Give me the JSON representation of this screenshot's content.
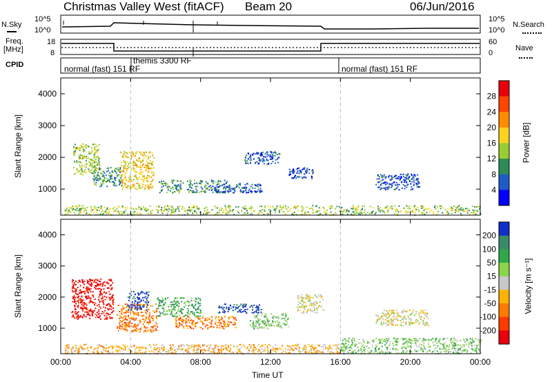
{
  "header": {
    "title": "Christmas Valley West (fitACF)",
    "beam": "Beam 20",
    "date": "06/Jun/2016"
  },
  "labels": {
    "nsky": "N.Sky",
    "nsearch": "N.Search",
    "freq": "Freq.",
    "freq_unit": "[MHz]",
    "nave": "Nave",
    "cpid": "CPID",
    "y_axis": "Slant Range [km]",
    "x_axis": "Time UT",
    "power_label": "Power [dB]",
    "velocity_label": "Velocity [m s⁻¹]"
  },
  "noise_panel": {
    "left_ticks": [
      "10^5",
      "10^0"
    ],
    "right_ticks": [
      "10^5",
      "10^0"
    ]
  },
  "freq_panel": {
    "left_ticks": [
      "18",
      "8"
    ],
    "right_ticks": [
      "60",
      "0"
    ]
  },
  "cpid_segments": [
    {
      "text": "normal (fast) 151 RF",
      "start_hour": 0
    },
    {
      "text": "themis 3300 RF",
      "start_hour": 4
    },
    {
      "text": "normal (fast) 151 RF",
      "start_hour": 16
    }
  ],
  "chart_data": [
    {
      "type": "heatmap",
      "name": "power",
      "x_ticks": [
        "00:00",
        "04:00",
        "08:00",
        "12:00",
        "16:00",
        "20:00",
        "00:00"
      ],
      "xlim": [
        0,
        24
      ],
      "ylim": [
        180,
        4500
      ],
      "y_ticks": [
        1000,
        2000,
        3000,
        4000
      ],
      "colorbar_ticks": [
        "28",
        "24",
        "20",
        "16",
        "12",
        "8",
        "4"
      ],
      "colorbar_colors": [
        "#e8000b",
        "#ff4500",
        "#ff8c00",
        "#ffd21e",
        "#9acd32",
        "#2e8b57",
        "#1e5bc8",
        "#0000ff"
      ],
      "dashed_markers_hours": [
        4,
        16
      ],
      "regions": [
        {
          "t0": 0.7,
          "t1": 2.2,
          "r0": 1450,
          "r1": 2450,
          "color_index": 4
        },
        {
          "t0": 1.8,
          "t1": 3.5,
          "r0": 1100,
          "r1": 1700,
          "color_index": 5
        },
        {
          "t0": 3.4,
          "t1": 5.3,
          "r0": 1000,
          "r1": 2200,
          "color_index": 3
        },
        {
          "t0": 5.6,
          "t1": 7.0,
          "r0": 900,
          "r1": 1300,
          "color_index": 5
        },
        {
          "t0": 7.2,
          "t1": 9.5,
          "r0": 900,
          "r1": 1300,
          "color_index": 5
        },
        {
          "t0": 8.5,
          "t1": 11.5,
          "r0": 900,
          "r1": 1200,
          "color_index": 6
        },
        {
          "t0": 10.5,
          "t1": 12.5,
          "r0": 1800,
          "r1": 2200,
          "color_index": 6
        },
        {
          "t0": 13.0,
          "t1": 14.5,
          "r0": 1350,
          "r1": 1700,
          "color_index": 6
        },
        {
          "t0": 18.0,
          "t1": 20.5,
          "r0": 1000,
          "r1": 1500,
          "color_index": 6
        },
        {
          "t0": 0.2,
          "t1": 24.0,
          "r0": 200,
          "r1": 500,
          "color_index": 4
        }
      ]
    },
    {
      "type": "heatmap",
      "name": "velocity",
      "x_ticks": [
        "00:00",
        "04:00",
        "08:00",
        "12:00",
        "16:00",
        "20:00",
        "00:00"
      ],
      "xlim": [
        0,
        24
      ],
      "ylim": [
        180,
        4500
      ],
      "y_ticks": [
        1000,
        2000,
        3000,
        4000
      ],
      "colorbar_ticks": [
        "200",
        "100",
        "50",
        "15",
        "-15",
        "-50",
        "-100",
        "-200"
      ],
      "colorbar_colors": [
        "#1030c8",
        "#3a8a6a",
        "#2fa84a",
        "#8ad54b",
        "#c8c8c8",
        "#ffb300",
        "#ff7a00",
        "#ff3a00",
        "#e8000b"
      ],
      "dashed_markers_hours": [
        4,
        16
      ],
      "regions": [
        {
          "t0": 0.6,
          "t1": 3.0,
          "r0": 1300,
          "r1": 2600,
          "color_index": 8
        },
        {
          "t0": 3.2,
          "t1": 5.5,
          "r0": 900,
          "r1": 1800,
          "color_index": 6
        },
        {
          "t0": 3.8,
          "t1": 5.0,
          "r0": 1600,
          "r1": 2200,
          "color_index": 0
        },
        {
          "t0": 5.5,
          "t1": 8.0,
          "r0": 1400,
          "r1": 2000,
          "color_index": 2
        },
        {
          "t0": 6.5,
          "t1": 10.0,
          "r0": 1000,
          "r1": 1400,
          "color_index": 6
        },
        {
          "t0": 9.0,
          "t1": 11.5,
          "r0": 1500,
          "r1": 1800,
          "color_index": 0
        },
        {
          "t0": 10.8,
          "t1": 13.0,
          "r0": 1000,
          "r1": 1500,
          "color_index": 3
        },
        {
          "t0": 13.5,
          "t1": 15.0,
          "r0": 1500,
          "r1": 2100,
          "color_index": 4
        },
        {
          "t0": 18.0,
          "t1": 21.0,
          "r0": 1100,
          "r1": 1600,
          "color_index": 4
        },
        {
          "t0": 0.2,
          "t1": 16.0,
          "r0": 200,
          "r1": 500,
          "color_index": 5
        },
        {
          "t0": 16.0,
          "t1": 24.0,
          "r0": 200,
          "r1": 700,
          "color_index": 3
        }
      ]
    }
  ]
}
